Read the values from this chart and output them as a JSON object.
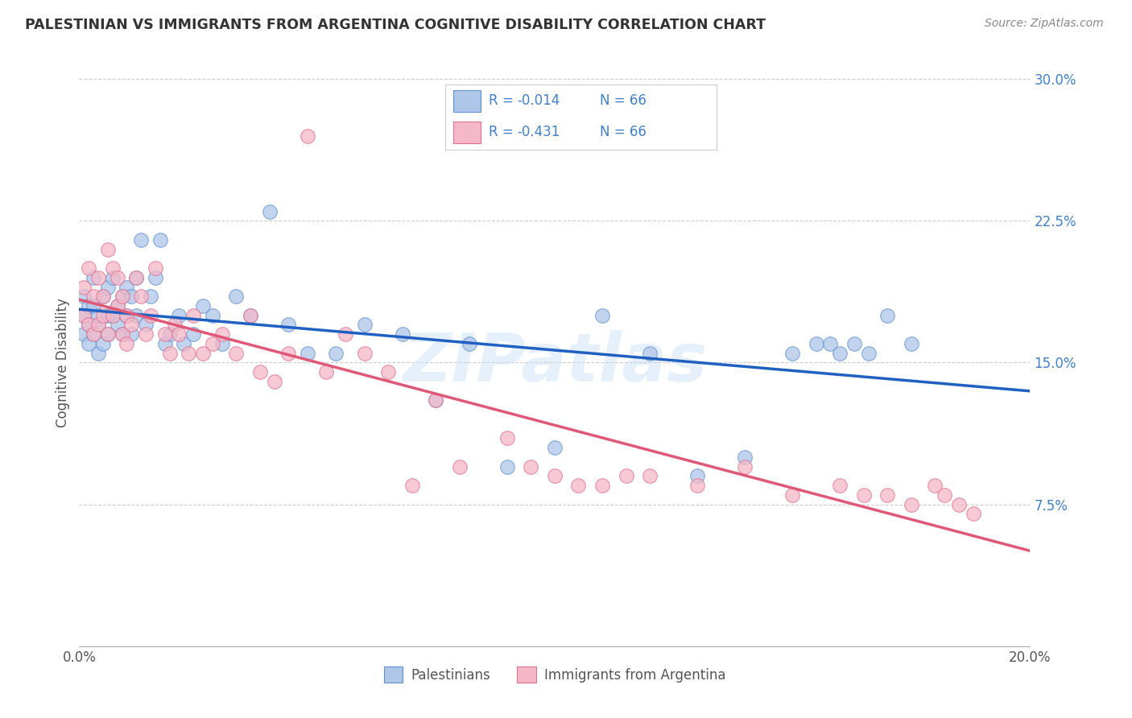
{
  "title": "PALESTINIAN VS IMMIGRANTS FROM ARGENTINA COGNITIVE DISABILITY CORRELATION CHART",
  "source": "Source: ZipAtlas.com",
  "ylabel": "Cognitive Disability",
  "xlim": [
    0.0,
    0.2
  ],
  "ylim": [
    0.0,
    0.3
  ],
  "yticks": [
    0.0,
    0.075,
    0.15,
    0.225,
    0.3
  ],
  "yticklabels": [
    "",
    "7.5%",
    "15.0%",
    "22.5%",
    "30.0%"
  ],
  "legend_label1": "Palestinians",
  "legend_label2": "Immigrants from Argentina",
  "blue_fill": "#aec6e8",
  "pink_fill": "#f5b8c8",
  "blue_edge": "#6090d0",
  "pink_edge": "#e07090",
  "line_blue": "#2060c0",
  "line_pink": "#e05878",
  "text_color_blue": "#4080c8",
  "watermark": "ZIPatlas",
  "blue_points_x": [
    0.001,
    0.001,
    0.001,
    0.002,
    0.002,
    0.002,
    0.003,
    0.003,
    0.003,
    0.004,
    0.004,
    0.004,
    0.005,
    0.005,
    0.006,
    0.006,
    0.006,
    0.007,
    0.007,
    0.008,
    0.008,
    0.009,
    0.009,
    0.01,
    0.01,
    0.011,
    0.011,
    0.012,
    0.012,
    0.013,
    0.014,
    0.015,
    0.016,
    0.017,
    0.018,
    0.019,
    0.021,
    0.022,
    0.024,
    0.026,
    0.028,
    0.03,
    0.033,
    0.036,
    0.04,
    0.044,
    0.048,
    0.054,
    0.06,
    0.068,
    0.075,
    0.082,
    0.09,
    0.1,
    0.11,
    0.12,
    0.13,
    0.14,
    0.15,
    0.155,
    0.158,
    0.16,
    0.163,
    0.166,
    0.17,
    0.175
  ],
  "blue_points_y": [
    0.165,
    0.175,
    0.185,
    0.17,
    0.18,
    0.16,
    0.165,
    0.18,
    0.195,
    0.17,
    0.175,
    0.155,
    0.185,
    0.16,
    0.175,
    0.19,
    0.165,
    0.175,
    0.195,
    0.17,
    0.18,
    0.165,
    0.185,
    0.19,
    0.175,
    0.185,
    0.165,
    0.195,
    0.175,
    0.215,
    0.17,
    0.185,
    0.195,
    0.215,
    0.16,
    0.165,
    0.175,
    0.16,
    0.165,
    0.18,
    0.175,
    0.16,
    0.185,
    0.175,
    0.23,
    0.17,
    0.155,
    0.155,
    0.17,
    0.165,
    0.13,
    0.16,
    0.095,
    0.105,
    0.175,
    0.155,
    0.09,
    0.1,
    0.155,
    0.16,
    0.16,
    0.155,
    0.16,
    0.155,
    0.175,
    0.16
  ],
  "pink_points_x": [
    0.001,
    0.001,
    0.002,
    0.002,
    0.003,
    0.003,
    0.004,
    0.004,
    0.005,
    0.005,
    0.006,
    0.006,
    0.007,
    0.007,
    0.008,
    0.008,
    0.009,
    0.009,
    0.01,
    0.01,
    0.011,
    0.012,
    0.013,
    0.014,
    0.015,
    0.016,
    0.018,
    0.019,
    0.02,
    0.021,
    0.023,
    0.024,
    0.026,
    0.028,
    0.03,
    0.033,
    0.036,
    0.038,
    0.041,
    0.044,
    0.048,
    0.052,
    0.056,
    0.06,
    0.065,
    0.07,
    0.075,
    0.08,
    0.09,
    0.095,
    0.1,
    0.105,
    0.11,
    0.115,
    0.12,
    0.13,
    0.14,
    0.15,
    0.16,
    0.165,
    0.17,
    0.175,
    0.18,
    0.182,
    0.185,
    0.188
  ],
  "pink_points_y": [
    0.175,
    0.19,
    0.17,
    0.2,
    0.165,
    0.185,
    0.17,
    0.195,
    0.175,
    0.185,
    0.21,
    0.165,
    0.175,
    0.2,
    0.18,
    0.195,
    0.165,
    0.185,
    0.175,
    0.16,
    0.17,
    0.195,
    0.185,
    0.165,
    0.175,
    0.2,
    0.165,
    0.155,
    0.17,
    0.165,
    0.155,
    0.175,
    0.155,
    0.16,
    0.165,
    0.155,
    0.175,
    0.145,
    0.14,
    0.155,
    0.27,
    0.145,
    0.165,
    0.155,
    0.145,
    0.085,
    0.13,
    0.095,
    0.11,
    0.095,
    0.09,
    0.085,
    0.085,
    0.09,
    0.09,
    0.085,
    0.095,
    0.08,
    0.085,
    0.08,
    0.08,
    0.075,
    0.085,
    0.08,
    0.075,
    0.07
  ]
}
